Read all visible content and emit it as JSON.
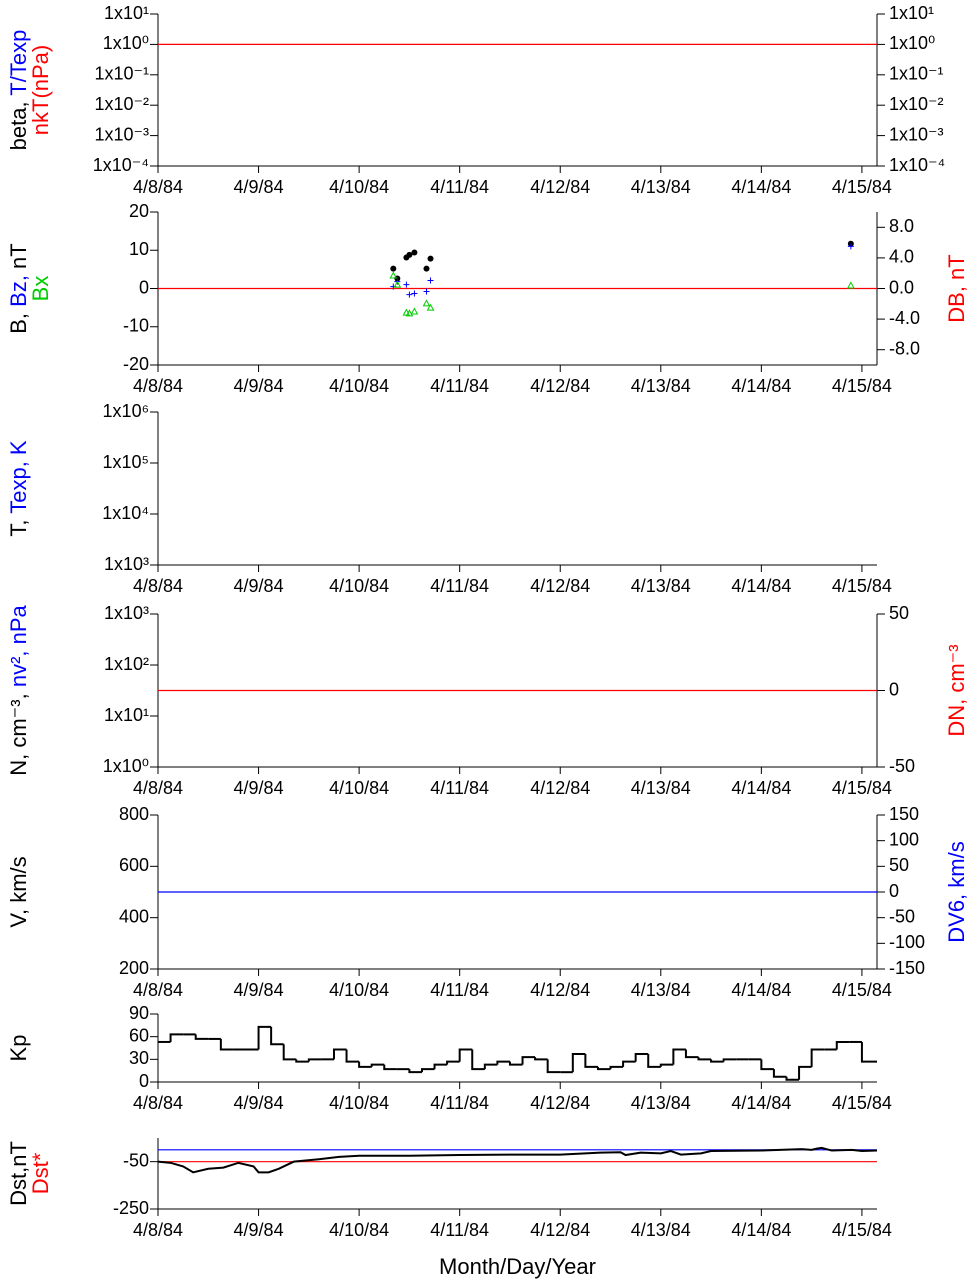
{
  "chart_data": [
    {
      "type": "line",
      "log_y": true,
      "mirror_yticks": true,
      "ylabel_lines": [
        [
          {
            "text": "beta, ",
            "color": "#000000"
          },
          {
            "text": "T/Texp",
            "color": "#0000ff"
          }
        ],
        [
          {
            "text": "nkT(nPa)",
            "color": "#ff0000"
          }
        ]
      ],
      "xlim": [
        0,
        7.15
      ],
      "xticks": [
        {
          "value": 0,
          "label": "4/8/84"
        },
        {
          "value": 1,
          "label": "4/9/84"
        },
        {
          "value": 2,
          "label": "4/10/84"
        },
        {
          "value": 3,
          "label": "4/11/84"
        },
        {
          "value": 4,
          "label": "4/12/84"
        },
        {
          "value": 5,
          "label": "4/13/84"
        },
        {
          "value": 6,
          "label": "4/14/84"
        },
        {
          "value": 7,
          "label": "4/15/84"
        }
      ],
      "ylim": [
        0.0001,
        10
      ],
      "yticks": [
        {
          "value": 10,
          "label": "1x10¹"
        },
        {
          "value": 1,
          "label": "1x10⁰"
        },
        {
          "value": 0.1,
          "label": "1x10⁻¹"
        },
        {
          "value": 0.01,
          "label": "1x10⁻²"
        },
        {
          "value": 0.001,
          "label": "1x10⁻³"
        },
        {
          "value": 0.0001,
          "label": "1x10⁻⁴"
        }
      ],
      "reference_lines": [
        {
          "value": 1,
          "color": "#ff0000"
        }
      ]
    },
    {
      "type": "scatter",
      "ylabel_lines": [
        [
          {
            "text": "B, ",
            "color": "#000000"
          },
          {
            "text": "Bz, ",
            "color": "#0000ff"
          },
          {
            "text": "nT",
            "color": "#000000"
          }
        ],
        [
          {
            "text": "Bx",
            "color": "#00cc00"
          }
        ]
      ],
      "y2label": [
        {
          "text": "DB, nT",
          "color": "#ff0000"
        }
      ],
      "xlim": [
        0,
        7.15
      ],
      "xticks": [
        {
          "value": 0,
          "label": "4/8/84"
        },
        {
          "value": 1,
          "label": "4/9/84"
        },
        {
          "value": 2,
          "label": "4/10/84"
        },
        {
          "value": 3,
          "label": "4/11/84"
        },
        {
          "value": 4,
          "label": "4/12/84"
        },
        {
          "value": 5,
          "label": "4/13/84"
        },
        {
          "value": 6,
          "label": "4/14/84"
        },
        {
          "value": 7,
          "label": "4/15/84"
        }
      ],
      "ylim": [
        -20,
        20
      ],
      "yticks": [
        20,
        10,
        0,
        -10,
        -20
      ],
      "y2lim": [
        -10,
        10
      ],
      "y2ticks": [
        {
          "value": 8,
          "label": "8.0"
        },
        {
          "value": 4,
          "label": "4.0"
        },
        {
          "value": 0,
          "label": "0.0"
        },
        {
          "value": -4,
          "label": "-4.0"
        },
        {
          "value": -8,
          "label": "-8.0"
        }
      ],
      "reference_lines": [
        {
          "value": 0,
          "color": "#ff0000",
          "axis": "y2"
        }
      ],
      "x": [
        2.34,
        2.38,
        2.47,
        2.5,
        2.55,
        2.67,
        2.71,
        6.89
      ],
      "series": [
        {
          "color": "#000000",
          "marker": "dot",
          "values": [
            5.2,
            2.6,
            8.1,
            8.8,
            9.4,
            5.2,
            7.8,
            11.7
          ]
        },
        {
          "color": "#0000ff",
          "marker": "plus",
          "values": [
            0.5,
            1.8,
            1.0,
            -1.6,
            -1.3,
            -0.8,
            2.1,
            11.0
          ]
        },
        {
          "color": "#00cc00",
          "marker": "triangle",
          "values": [
            3.4,
            1.0,
            -6.3,
            -6.5,
            -6.0,
            -3.9,
            -5.0,
            0.8
          ]
        }
      ]
    },
    {
      "type": "line",
      "log_y": true,
      "ylabel_lines": [
        [
          {
            "text": "T, ",
            "color": "#000000"
          },
          {
            "text": "Texp, K",
            "color": "#0000ff"
          }
        ]
      ],
      "xlim": [
        0,
        7.15
      ],
      "xticks": [
        {
          "value": 0,
          "label": "4/8/84"
        },
        {
          "value": 1,
          "label": "4/9/84"
        },
        {
          "value": 2,
          "label": "4/10/84"
        },
        {
          "value": 3,
          "label": "4/11/84"
        },
        {
          "value": 4,
          "label": "4/12/84"
        },
        {
          "value": 5,
          "label": "4/13/84"
        },
        {
          "value": 6,
          "label": "4/14/84"
        },
        {
          "value": 7,
          "label": "4/15/84"
        }
      ],
      "ylim": [
        1000,
        1000000
      ],
      "yticks": [
        {
          "value": 1000000,
          "label": "1x10⁶"
        },
        {
          "value": 100000,
          "label": "1x10⁵"
        },
        {
          "value": 10000,
          "label": "1x10⁴"
        },
        {
          "value": 1000,
          "label": "1x10³"
        }
      ]
    },
    {
      "type": "line",
      "log_y": true,
      "ylabel_lines": [
        [
          {
            "text": "N, cm⁻³, ",
            "color": "#000000"
          },
          {
            "text": "nv², nPa",
            "color": "#0000ff"
          }
        ]
      ],
      "y2label": [
        {
          "text": "DN, cm⁻³",
          "color": "#ff0000"
        }
      ],
      "xlim": [
        0,
        7.15
      ],
      "xticks": [
        {
          "value": 0,
          "label": "4/8/84"
        },
        {
          "value": 1,
          "label": "4/9/84"
        },
        {
          "value": 2,
          "label": "4/10/84"
        },
        {
          "value": 3,
          "label": "4/11/84"
        },
        {
          "value": 4,
          "label": "4/12/84"
        },
        {
          "value": 5,
          "label": "4/13/84"
        },
        {
          "value": 6,
          "label": "4/14/84"
        },
        {
          "value": 7,
          "label": "4/15/84"
        }
      ],
      "ylim": [
        1,
        1000
      ],
      "yticks": [
        {
          "value": 1000,
          "label": "1x10³"
        },
        {
          "value": 100,
          "label": "1x10²"
        },
        {
          "value": 10,
          "label": "1x10¹"
        },
        {
          "value": 1,
          "label": "1x10⁰"
        }
      ],
      "y2lim": [
        -50,
        50
      ],
      "y2ticks": [
        50,
        0,
        -50
      ],
      "reference_lines": [
        {
          "value": 0,
          "color": "#ff0000",
          "axis": "y2"
        }
      ]
    },
    {
      "type": "line",
      "ylabel_lines": [
        [
          {
            "text": "V, km/s",
            "color": "#000000"
          }
        ]
      ],
      "y2label": [
        {
          "text": "DV6, km/s",
          "color": "#0000ff"
        }
      ],
      "xlim": [
        0,
        7.15
      ],
      "xticks": [
        {
          "value": 0,
          "label": "4/8/84"
        },
        {
          "value": 1,
          "label": "4/9/84"
        },
        {
          "value": 2,
          "label": "4/10/84"
        },
        {
          "value": 3,
          "label": "4/11/84"
        },
        {
          "value": 4,
          "label": "4/12/84"
        },
        {
          "value": 5,
          "label": "4/13/84"
        },
        {
          "value": 6,
          "label": "4/14/84"
        },
        {
          "value": 7,
          "label": "4/15/84"
        }
      ],
      "ylim": [
        200,
        800
      ],
      "yticks": [
        800,
        600,
        400,
        200
      ],
      "y2lim": [
        -150,
        150
      ],
      "y2ticks": [
        150,
        100,
        50,
        0,
        -50,
        -100,
        -150
      ],
      "reference_lines": [
        {
          "value": 0,
          "color": "#0000ff",
          "axis": "y2"
        }
      ]
    },
    {
      "type": "step",
      "ylabel_lines": [
        [
          {
            "text": "Kp",
            "color": "#000000"
          }
        ]
      ],
      "xlim": [
        0,
        7.15
      ],
      "xticks": [
        {
          "value": 0,
          "label": "4/8/84"
        },
        {
          "value": 1,
          "label": "4/9/84"
        },
        {
          "value": 2,
          "label": "4/10/84"
        },
        {
          "value": 3,
          "label": "4/11/84"
        },
        {
          "value": 4,
          "label": "4/12/84"
        },
        {
          "value": 5,
          "label": "4/13/84"
        },
        {
          "value": 6,
          "label": "4/14/84"
        },
        {
          "value": 7,
          "label": "4/15/84"
        }
      ],
      "ylim": [
        0,
        90
      ],
      "yticks": [
        90,
        60,
        30,
        0
      ],
      "x": [
        0,
        0.125,
        0.25,
        0.375,
        0.5,
        0.625,
        0.75,
        0.875,
        1,
        1.125,
        1.25,
        1.375,
        1.5,
        1.625,
        1.75,
        1.875,
        2,
        2.125,
        2.25,
        2.375,
        2.5,
        2.625,
        2.75,
        2.875,
        3,
        3.125,
        3.25,
        3.375,
        3.5,
        3.625,
        3.75,
        3.875,
        4,
        4.125,
        4.25,
        4.375,
        4.5,
        4.625,
        4.75,
        4.875,
        5,
        5.125,
        5.25,
        5.375,
        5.5,
        5.625,
        5.75,
        5.875,
        6,
        6.125,
        6.25,
        6.375,
        6.5,
        6.625,
        6.75,
        6.875,
        7
      ],
      "series": [
        {
          "color": "#000000",
          "values": [
            53,
            63,
            63,
            57,
            57,
            43,
            43,
            43,
            73,
            50,
            30,
            27,
            30,
            30,
            43,
            27,
            20,
            23,
            17,
            17,
            13,
            17,
            23,
            27,
            43,
            17,
            23,
            27,
            23,
            33,
            30,
            13,
            13,
            37,
            20,
            17,
            20,
            27,
            37,
            20,
            23,
            43,
            33,
            30,
            27,
            30,
            30,
            30,
            17,
            7,
            3,
            20,
            43,
            43,
            53,
            53,
            27
          ]
        }
      ]
    },
    {
      "type": "line",
      "ylabel_lines": [
        [
          {
            "text": "Dst,nT",
            "color": "#000000"
          }
        ],
        [
          {
            "text": "Dst*",
            "color": "#ff0000"
          }
        ]
      ],
      "xlabel": "Month/Day/Year",
      "xlim": [
        0,
        7.15
      ],
      "xticks": [
        {
          "value": 0,
          "label": "4/8/84"
        },
        {
          "value": 1,
          "label": "4/9/84"
        },
        {
          "value": 2,
          "label": "4/10/84"
        },
        {
          "value": 3,
          "label": "4/11/84"
        },
        {
          "value": 4,
          "label": "4/12/84"
        },
        {
          "value": 5,
          "label": "4/13/84"
        },
        {
          "value": 6,
          "label": "4/14/84"
        },
        {
          "value": 7,
          "label": "4/15/84"
        }
      ],
      "ylim": [
        -250,
        50
      ],
      "yticks": [
        -50,
        -250
      ],
      "reference_lines": [
        {
          "value": 0,
          "color": "#0000ff"
        },
        {
          "value": -50,
          "color": "#ff0000"
        }
      ],
      "x": [
        0,
        0.125,
        0.25,
        0.35,
        0.5,
        0.65,
        0.8,
        0.95,
        1.0,
        1.1,
        1.2,
        1.35,
        1.6,
        1.8,
        2.0,
        2.5,
        3.0,
        3.5,
        4.0,
        4.4,
        4.6,
        4.65,
        4.8,
        5.0,
        5.1,
        5.2,
        5.4,
        5.5,
        6.0,
        6.4,
        6.5,
        6.55,
        6.6,
        6.7,
        6.9,
        7.0,
        7.15
      ],
      "series": [
        {
          "color": "#000000",
          "values": [
            -50,
            -55,
            -70,
            -95,
            -80,
            -75,
            -55,
            -70,
            -95,
            -95,
            -80,
            -50,
            -40,
            -30,
            -25,
            -25,
            -22,
            -20,
            -20,
            -12,
            -10,
            -22,
            -12,
            -15,
            -5,
            -20,
            -15,
            -5,
            -3,
            3,
            0,
            5,
            8,
            -3,
            0,
            -5,
            -3
          ]
        }
      ]
    }
  ]
}
